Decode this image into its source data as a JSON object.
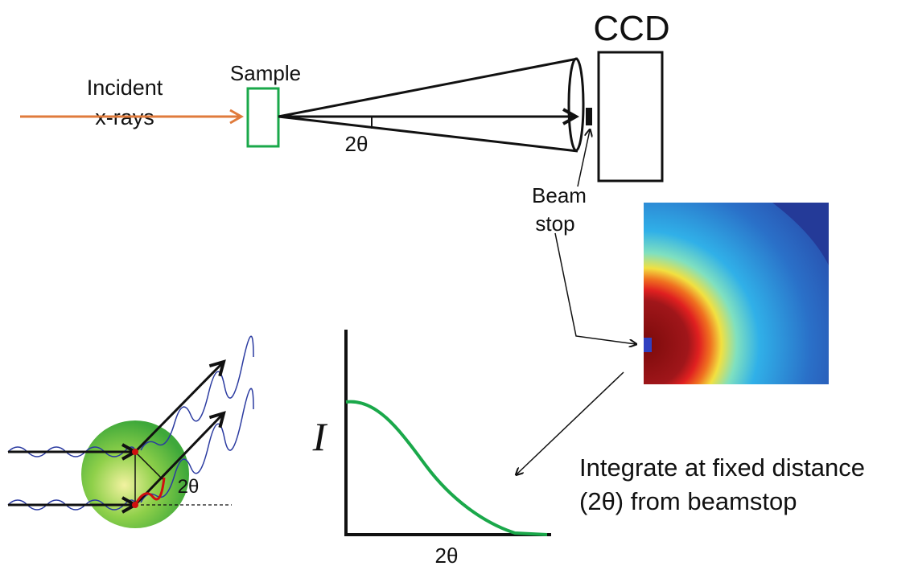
{
  "incident_label": [
    "Incident",
    "x-rays"
  ],
  "sample_label": "Sample",
  "detector_label": "CCD",
  "scatter_angle_label": "2θ",
  "beam_stop_label": [
    "Beam",
    "stop"
  ],
  "plot": {
    "y_label": "I",
    "x_label": "2θ"
  },
  "sphere_angle_label": "2θ",
  "caption": [
    "Integrate at fixed distance",
    "(2θ) from beamstop"
  ]
}
